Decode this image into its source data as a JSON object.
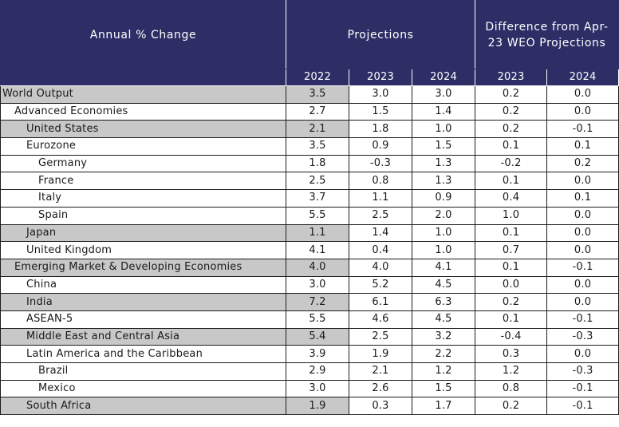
{
  "header": {
    "annual_change": "Annual % Change",
    "projections": "Projections",
    "difference": "Difference from Apr-23 WEO Projections"
  },
  "columns": [
    "2022",
    "2023",
    "2024",
    "2023",
    "2024"
  ],
  "rows": [
    {
      "label": "World Output",
      "indent": 0,
      "shaded": true,
      "values": [
        "3.5",
        "3.0",
        "3.0",
        "0.2",
        "0.0"
      ]
    },
    {
      "label": "Advanced Economies",
      "indent": 1,
      "shaded": false,
      "values": [
        "2.7",
        "1.5",
        "1.4",
        "0.2",
        "0.0"
      ]
    },
    {
      "label": "United States",
      "indent": 2,
      "shaded": true,
      "values": [
        "2.1",
        "1.8",
        "1.0",
        "0.2",
        "-0.1"
      ]
    },
    {
      "label": "Eurozone",
      "indent": 2,
      "shaded": false,
      "values": [
        "3.5",
        "0.9",
        "1.5",
        "0.1",
        "0.1"
      ]
    },
    {
      "label": "Germany",
      "indent": 3,
      "shaded": false,
      "values": [
        "1.8",
        "-0.3",
        "1.3",
        "-0.2",
        "0.2"
      ]
    },
    {
      "label": "France",
      "indent": 3,
      "shaded": false,
      "values": [
        "2.5",
        "0.8",
        "1.3",
        "0.1",
        "0.0"
      ]
    },
    {
      "label": "Italy",
      "indent": 3,
      "shaded": false,
      "values": [
        "3.7",
        "1.1",
        "0.9",
        "0.4",
        "0.1"
      ]
    },
    {
      "label": "Spain",
      "indent": 3,
      "shaded": false,
      "values": [
        "5.5",
        "2.5",
        "2.0",
        "1.0",
        "0.0"
      ]
    },
    {
      "label": "Japan",
      "indent": 2,
      "shaded": true,
      "values": [
        "1.1",
        "1.4",
        "1.0",
        "0.1",
        "0.0"
      ]
    },
    {
      "label": "United Kingdom",
      "indent": 2,
      "shaded": false,
      "values": [
        "4.1",
        "0.4",
        "1.0",
        "0.7",
        "0.0"
      ]
    },
    {
      "label": "Emerging Market & Developing Economies",
      "indent": 1,
      "shaded": true,
      "values": [
        "4.0",
        "4.0",
        "4.1",
        "0.1",
        "-0.1"
      ]
    },
    {
      "label": "China",
      "indent": 2,
      "shaded": false,
      "values": [
        "3.0",
        "5.2",
        "4.5",
        "0.0",
        "0.0"
      ]
    },
    {
      "label": "India",
      "indent": 2,
      "shaded": true,
      "values": [
        "7.2",
        "6.1",
        "6.3",
        "0.2",
        "0.0"
      ]
    },
    {
      "label": "ASEAN-5",
      "indent": 2,
      "shaded": false,
      "values": [
        "5.5",
        "4.6",
        "4.5",
        "0.1",
        "-0.1"
      ]
    },
    {
      "label": "Middle East and Central Asia",
      "indent": 2,
      "shaded": true,
      "values": [
        "5.4",
        "2.5",
        "3.2",
        "-0.4",
        "-0.3"
      ]
    },
    {
      "label": "Latin America and the Caribbean",
      "indent": 2,
      "shaded": false,
      "values": [
        "3.9",
        "1.9",
        "2.2",
        "0.3",
        "0.0"
      ]
    },
    {
      "label": "Brazil",
      "indent": 3,
      "shaded": false,
      "values": [
        "2.9",
        "2.1",
        "1.2",
        "1.2",
        "-0.3"
      ]
    },
    {
      "label": "Mexico",
      "indent": 3,
      "shaded": false,
      "values": [
        "3.0",
        "2.6",
        "1.5",
        "0.8",
        "-0.1"
      ]
    },
    {
      "label": "South Africa",
      "indent": 2,
      "shaded": true,
      "values": [
        "1.9",
        "0.3",
        "1.7",
        "0.2",
        "-0.1"
      ]
    }
  ],
  "colors": {
    "header_bg": "#2d2e66",
    "shade": "#c8c8c8"
  }
}
